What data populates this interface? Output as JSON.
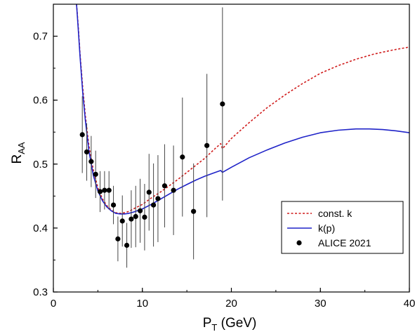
{
  "chart_data": {
    "type": "line",
    "xlabel": {
      "main": "P",
      "sub": "T",
      "unit": " (GeV)"
    },
    "ylabel": {
      "main": "R",
      "sub": "AA"
    },
    "xlim": [
      0,
      40
    ],
    "ylim": [
      0.3,
      0.75
    ],
    "xticks": [
      "0",
      "10",
      "20",
      "30",
      "40"
    ],
    "xtick_values": [
      0,
      10,
      20,
      30,
      40
    ],
    "yticks": [
      "0.3",
      "0.4",
      "0.5",
      "0.6",
      "0.7"
    ],
    "ytick_values": [
      0.3,
      0.4,
      0.5,
      0.6,
      0.7
    ],
    "minor_x_step": 5,
    "minor_y_step": 0.05,
    "grid": false,
    "legend_position": "bottom-right",
    "series": [
      {
        "name": "const. k",
        "style": "dashed",
        "color": "#d01c1c",
        "x": [
          2.6,
          2.8,
          3.0,
          3.3,
          3.6,
          4.0,
          4.5,
          5.0,
          5.5,
          6.0,
          6.5,
          7.0,
          7.5,
          8.0,
          8.5,
          9.0,
          10.0,
          11.0,
          12.0,
          13.0,
          14.0,
          15.0,
          16.0,
          17.0,
          18.0,
          18.8,
          19.0,
          20.0,
          22.0,
          24.0,
          26.0,
          28.0,
          30.0,
          32.0,
          34.0,
          36.0,
          38.0,
          40.0
        ],
        "y": [
          0.75,
          0.715,
          0.672,
          0.62,
          0.575,
          0.528,
          0.49,
          0.463,
          0.446,
          0.435,
          0.428,
          0.424,
          0.423,
          0.424,
          0.426,
          0.43,
          0.437,
          0.447,
          0.456,
          0.466,
          0.476,
          0.487,
          0.498,
          0.509,
          0.522,
          0.532,
          0.524,
          0.54,
          0.565,
          0.588,
          0.608,
          0.626,
          0.642,
          0.654,
          0.664,
          0.672,
          0.678,
          0.683
        ]
      },
      {
        "name": "k(p)",
        "style": "solid",
        "color": "#1f23c8",
        "x": [
          2.6,
          2.8,
          3.0,
          3.3,
          3.6,
          4.0,
          4.5,
          5.0,
          5.5,
          6.0,
          6.5,
          7.0,
          7.5,
          8.0,
          8.5,
          9.0,
          10.0,
          11.0,
          12.0,
          13.0,
          14.0,
          15.0,
          16.0,
          17.0,
          18.0,
          18.8,
          19.0,
          20.0,
          22.0,
          24.0,
          26.0,
          28.0,
          30.0,
          32.0,
          34.0,
          35.5,
          37.0,
          38.5,
          40.0
        ],
        "y": [
          0.75,
          0.71,
          0.668,
          0.612,
          0.568,
          0.52,
          0.482,
          0.458,
          0.443,
          0.433,
          0.427,
          0.423,
          0.422,
          0.422,
          0.423,
          0.425,
          0.43,
          0.437,
          0.445,
          0.453,
          0.461,
          0.468,
          0.475,
          0.481,
          0.486,
          0.49,
          0.487,
          0.495,
          0.51,
          0.522,
          0.533,
          0.542,
          0.549,
          0.553,
          0.555,
          0.555,
          0.554,
          0.552,
          0.549
        ]
      }
    ],
    "points": {
      "name": "ALICE 2021",
      "color": "#000000",
      "x": [
        3.25,
        3.75,
        4.25,
        4.75,
        5.25,
        5.75,
        6.25,
        6.75,
        7.25,
        7.75,
        8.25,
        8.75,
        9.25,
        9.75,
        10.25,
        10.75,
        11.25,
        11.75,
        12.5,
        13.5,
        14.5,
        15.75,
        17.25,
        19.0
      ],
      "y": [
        0.546,
        0.519,
        0.504,
        0.484,
        0.457,
        0.459,
        0.459,
        0.436,
        0.383,
        0.411,
        0.373,
        0.414,
        0.418,
        0.427,
        0.417,
        0.456,
        0.436,
        0.446,
        0.466,
        0.459,
        0.511,
        0.426,
        0.529,
        0.594
      ],
      "yerr": [
        0.06,
        0.045,
        0.04,
        0.037,
        0.032,
        0.03,
        0.03,
        0.03,
        0.035,
        0.04,
        0.035,
        0.045,
        0.048,
        0.05,
        0.052,
        0.06,
        0.065,
        0.068,
        0.065,
        0.07,
        0.093,
        0.075,
        0.112,
        0.151
      ]
    }
  }
}
